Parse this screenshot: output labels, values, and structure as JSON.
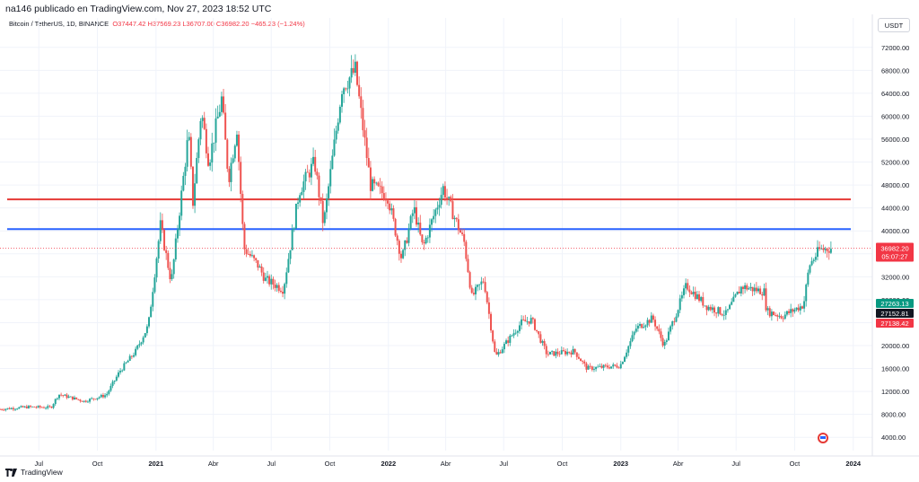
{
  "header": {
    "published": "na146 publicado en TradingView.com, Nov 27, 2023 18:52 UTC",
    "symbol": "Bitcoin / TetherUS, 1D, BINANCE",
    "open": "O37447.42",
    "high": "H37569.23",
    "low": "L36707.00",
    "close": "C36982.20",
    "change": "−465.23 (−1.24%)"
  },
  "currency_button": "USDT",
  "footer": {
    "brand": "TradingView"
  },
  "colors": {
    "up": "#26a69a",
    "down": "#ef5350",
    "resistance": "#e53935",
    "support": "#2962ff",
    "last_price": "#f23645",
    "tag_green": "#089981",
    "tag_dark": "#131722"
  },
  "chart_data": {
    "type": "candlestick",
    "title": "",
    "xlabel": "",
    "ylabel": "",
    "x_range": [
      "2020-05-01",
      "2024-01-31"
    ],
    "ylim": [
      2000,
      74000
    ],
    "y_scale": "linear",
    "y_ticks": [
      "4000.00",
      "8000.00",
      "12000.00",
      "16000.00",
      "20000.00",
      "24000.00",
      "28000.00",
      "32000.00",
      "36000.00",
      "40000.00",
      "44000.00",
      "48000.00",
      "52000.00",
      "56000.00",
      "60000.00",
      "64000.00",
      "68000.00",
      "72000.00"
    ],
    "x_ticks": [
      {
        "label": "Jul",
        "date": "2020-07-01"
      },
      {
        "label": "Oct",
        "date": "2020-10-01"
      },
      {
        "label": "2021",
        "date": "2021-01-01"
      },
      {
        "label": "Abr",
        "date": "2021-04-01"
      },
      {
        "label": "Jul",
        "date": "2021-07-01"
      },
      {
        "label": "Oct",
        "date": "2021-10-01"
      },
      {
        "label": "2022",
        "date": "2022-01-01"
      },
      {
        "label": "Abr",
        "date": "2022-04-01"
      },
      {
        "label": "Jul",
        "date": "2022-07-01"
      },
      {
        "label": "Oct",
        "date": "2022-10-01"
      },
      {
        "label": "2023",
        "date": "2023-01-01"
      },
      {
        "label": "Abr",
        "date": "2023-04-01"
      },
      {
        "label": "Jul",
        "date": "2023-07-01"
      },
      {
        "label": "Oct",
        "date": "2023-10-01"
      },
      {
        "label": "2024",
        "date": "2024-01-01"
      }
    ],
    "price_path": [
      [
        "2020-05-01",
        8900
      ],
      [
        "2020-06-15",
        9300
      ],
      [
        "2020-07-20",
        9200
      ],
      [
        "2020-08-01",
        11500
      ],
      [
        "2020-09-10",
        10300
      ],
      [
        "2020-10-15",
        11400
      ],
      [
        "2020-11-05",
        15500
      ],
      [
        "2020-11-30",
        19000
      ],
      [
        "2020-12-20",
        23500
      ],
      [
        "2021-01-08",
        41000
      ],
      [
        "2021-01-25",
        31000
      ],
      [
        "2021-02-21",
        57000
      ],
      [
        "2021-02-28",
        45000
      ],
      [
        "2021-03-13",
        61000
      ],
      [
        "2021-03-25",
        52000
      ],
      [
        "2021-04-14",
        63000
      ],
      [
        "2021-04-25",
        49000
      ],
      [
        "2021-05-08",
        58000
      ],
      [
        "2021-05-19",
        37000
      ],
      [
        "2021-06-10",
        34000
      ],
      [
        "2021-06-22",
        31500
      ],
      [
        "2021-07-20",
        29800
      ],
      [
        "2021-08-14",
        47000
      ],
      [
        "2021-09-07",
        52000
      ],
      [
        "2021-09-21",
        41000
      ],
      [
        "2021-10-20",
        65000
      ],
      [
        "2021-11-10",
        68000
      ],
      [
        "2021-12-04",
        48000
      ],
      [
        "2021-12-31",
        46000
      ],
      [
        "2022-01-22",
        35000
      ],
      [
        "2022-02-10",
        44000
      ],
      [
        "2022-02-24",
        37000
      ],
      [
        "2022-03-28",
        47500
      ],
      [
        "2022-04-30",
        38000
      ],
      [
        "2022-05-12",
        28500
      ],
      [
        "2022-05-31",
        31500
      ],
      [
        "2022-06-18",
        18000
      ],
      [
        "2022-07-29",
        24000
      ],
      [
        "2022-08-14",
        24500
      ],
      [
        "2022-09-07",
        18500
      ],
      [
        "2022-10-20",
        19000
      ],
      [
        "2022-11-09",
        16000
      ],
      [
        "2022-12-31",
        16500
      ],
      [
        "2023-01-25",
        23000
      ],
      [
        "2023-02-20",
        24800
      ],
      [
        "2023-03-10",
        20000
      ],
      [
        "2023-04-14",
        30500
      ],
      [
        "2023-05-15",
        26900
      ],
      [
        "2023-06-15",
        25500
      ],
      [
        "2023-07-10",
        30300
      ],
      [
        "2023-08-14",
        29400
      ],
      [
        "2023-08-18",
        26000
      ],
      [
        "2023-09-11",
        25100
      ],
      [
        "2023-10-15",
        27100
      ],
      [
        "2023-10-24",
        34000
      ],
      [
        "2023-11-09",
        36700
      ],
      [
        "2023-11-27",
        36982
      ]
    ],
    "horizontal_lines": [
      {
        "value": 45500,
        "color": "#e53935"
      },
      {
        "value": 40300,
        "color": "#2962ff"
      }
    ],
    "last_price": {
      "value": 36982.2,
      "label": "36982.20",
      "countdown": "05:07:27"
    },
    "price_tags": [
      {
        "value": 27263.13,
        "label": "27263.13",
        "color": "#089981"
      },
      {
        "value": 27152.81,
        "label": "27152.81",
        "color": "#131722"
      },
      {
        "value": 27138.42,
        "label": "27138.42",
        "color": "#f23645"
      }
    ]
  }
}
